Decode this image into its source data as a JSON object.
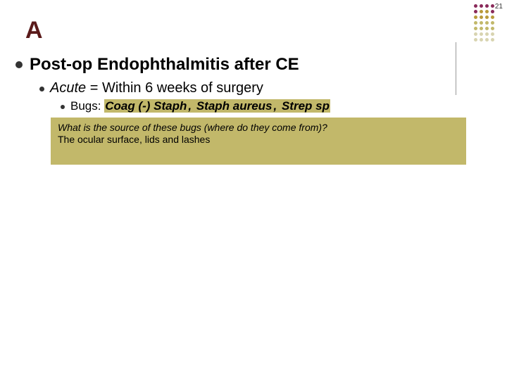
{
  "slide_number": "21",
  "title": "A",
  "heading": "Post-op Endophthalmitis after CE",
  "sub_italic": "Acute",
  "sub_rest": " = Within 6 weeks of surgery",
  "bugs_label": "Bugs: ",
  "bug1": "Coag (-) Staph",
  "bug_sep1": ", ",
  "bug2": "Staph aureus",
  "bug_sep2": ", ",
  "bug3": "Strep sp",
  "question": "What is the source of these bugs (where do they come from)?",
  "answer": "The ocular surface, lids and lashes",
  "corner_colors": {
    "r1": [
      "#8a2a5a",
      "#8a2a5a",
      "#8a2a5a",
      "#8a2a5a"
    ],
    "r2": [
      "#8a2a5a",
      "#b89a3a",
      "#b89a3a",
      "#8a2a5a"
    ],
    "r3": [
      "#b89a3a",
      "#b89a3a",
      "#b89a3a",
      "#b89a3a"
    ],
    "r4": [
      "#c2b86a",
      "#c2b86a",
      "#c2b86a",
      "#c2b86a"
    ],
    "r5": [
      "#c2b86a",
      "#c2b86a",
      "#c2b86a",
      "#c2b86a"
    ],
    "r6": [
      "#d8d4b0",
      "#d8d4b0",
      "#d8d4b0",
      "#d8d4b0"
    ],
    "r7": [
      "#d8d4b0",
      "#d8d4b0",
      "#d8d4b0",
      "#d8d4b0"
    ]
  }
}
